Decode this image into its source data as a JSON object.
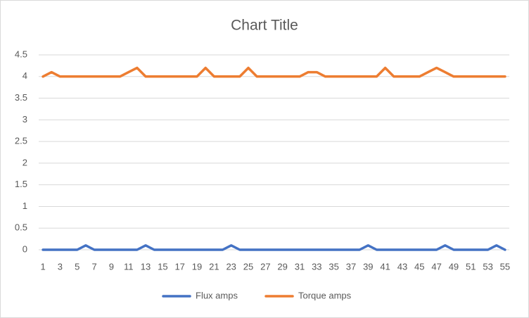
{
  "chart_data": {
    "type": "line",
    "title": "Chart Title",
    "categories": [
      1,
      null,
      3,
      null,
      5,
      null,
      7,
      null,
      9,
      null,
      11,
      null,
      13,
      null,
      15,
      null,
      17,
      null,
      19,
      null,
      21,
      null,
      23,
      null,
      25,
      null,
      27,
      null,
      29,
      null,
      31,
      null,
      33,
      null,
      35,
      null,
      37,
      null,
      39,
      null,
      41,
      null,
      43,
      null,
      45,
      null,
      47,
      null,
      49,
      null,
      51,
      null,
      53,
      null,
      55
    ],
    "series": [
      {
        "name": "Flux amps",
        "color": "#4472c4",
        "values": [
          0,
          0,
          0,
          0,
          0,
          0.1,
          0,
          0,
          0,
          0,
          0,
          0,
          0.1,
          0,
          0,
          0,
          0,
          0,
          0,
          0,
          0,
          0,
          0.1,
          0,
          0,
          0,
          0,
          0,
          0,
          0,
          0,
          0,
          0,
          0,
          0,
          0,
          0,
          0,
          0.1,
          0,
          0,
          0,
          0,
          0,
          0,
          0,
          0,
          0.1,
          0,
          0,
          0,
          0,
          0,
          0.1,
          0
        ]
      },
      {
        "name": "Torque amps",
        "color": "#ed7d31",
        "values": [
          4,
          4.1,
          4,
          4,
          4,
          4,
          4,
          4,
          4,
          4,
          4.1,
          4.2,
          4,
          4,
          4,
          4,
          4,
          4,
          4,
          4.2,
          4,
          4,
          4,
          4,
          4.2,
          4,
          4,
          4,
          4,
          4,
          4,
          4.1,
          4.1,
          4,
          4,
          4,
          4,
          4,
          4,
          4,
          4.2,
          4,
          4,
          4,
          4,
          4.1,
          4.2,
          4.1,
          4,
          4,
          4,
          4,
          4,
          4,
          4
        ]
      }
    ],
    "ylim": [
      0,
      4.5
    ],
    "yticks": [
      0,
      0.5,
      1,
      1.5,
      2,
      2.5,
      3,
      3.5,
      4,
      4.5
    ],
    "grid": true,
    "legend": "bottom"
  }
}
